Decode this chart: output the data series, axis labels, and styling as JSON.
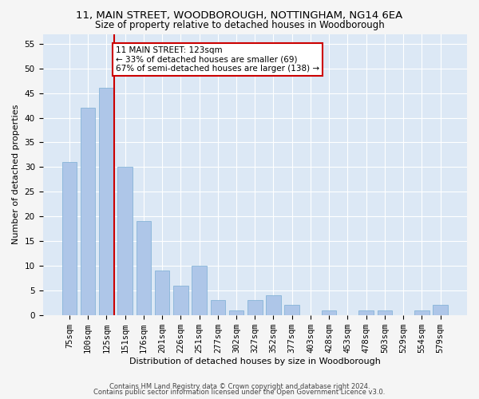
{
  "title1": "11, MAIN STREET, WOODBOROUGH, NOTTINGHAM, NG14 6EA",
  "title2": "Size of property relative to detached houses in Woodborough",
  "xlabel": "Distribution of detached houses by size in Woodborough",
  "ylabel": "Number of detached properties",
  "categories": [
    "75sqm",
    "100sqm",
    "125sqm",
    "151sqm",
    "176sqm",
    "201sqm",
    "226sqm",
    "251sqm",
    "277sqm",
    "302sqm",
    "327sqm",
    "352sqm",
    "377sqm",
    "403sqm",
    "428sqm",
    "453sqm",
    "478sqm",
    "503sqm",
    "529sqm",
    "554sqm",
    "579sqm"
  ],
  "values": [
    31,
    42,
    46,
    30,
    19,
    9,
    6,
    10,
    3,
    1,
    3,
    4,
    2,
    0,
    1,
    0,
    1,
    1,
    0,
    1,
    2
  ],
  "bar_color": "#aec6e8",
  "bar_edge_color": "#7aadd4",
  "highlight_line_index": 2,
  "highlight_line_color": "#cc0000",
  "annotation_text": "11 MAIN STREET: 123sqm\n← 33% of detached houses are smaller (69)\n67% of semi-detached houses are larger (138) →",
  "annotation_box_color": "#ffffff",
  "annotation_box_edge_color": "#cc0000",
  "ylim": [
    0,
    57
  ],
  "yticks": [
    0,
    5,
    10,
    15,
    20,
    25,
    30,
    35,
    40,
    45,
    50,
    55
  ],
  "footer1": "Contains HM Land Registry data © Crown copyright and database right 2024.",
  "footer2": "Contains public sector information licensed under the Open Government Licence v3.0.",
  "background_color": "#dce8f5",
  "grid_color": "#ffffff",
  "title_fontsize": 9.5,
  "subtitle_fontsize": 8.5,
  "axis_label_fontsize": 8,
  "tick_fontsize": 7.5,
  "annotation_fontsize": 7.5,
  "bar_width": 0.8,
  "fig_facecolor": "#f5f5f5"
}
